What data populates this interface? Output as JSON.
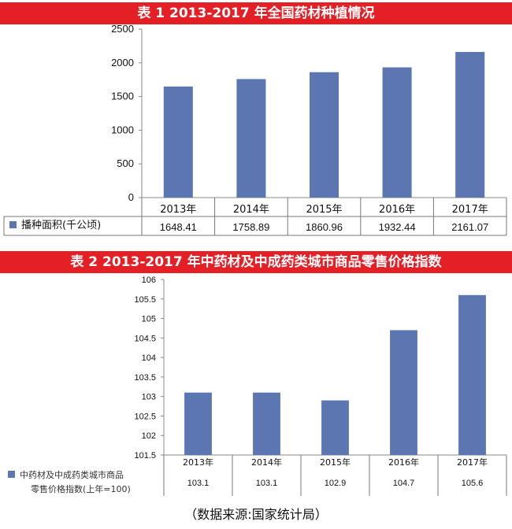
{
  "chart_data": [
    {
      "type": "bar",
      "title": "表 1   2013-2017 年全国药材种植情况",
      "categories": [
        "2013年",
        "2014年",
        "2015年",
        "2016年",
        "2017年"
      ],
      "series": [
        {
          "name": "播种面积(千公顷)",
          "values": [
            1648.41,
            1758.89,
            1860.96,
            1932.44,
            2161.07
          ]
        }
      ],
      "value_labels": [
        "1648.41",
        "1758.89",
        "1860.96",
        "1932.44",
        "2161.07"
      ],
      "y_ticks": [
        "0",
        "500",
        "1000",
        "1500",
        "2000",
        "2500"
      ],
      "ylim": [
        0,
        2500
      ],
      "data_table": true,
      "legend": "data-table",
      "grid": false,
      "color": "#5b76b1"
    },
    {
      "type": "bar",
      "title": "表 2   2013-2017 年中药材及中成药类城市商品零售价格指数",
      "categories": [
        "2013年",
        "2014年",
        "2015年",
        "2016年",
        "2017年"
      ],
      "series": [
        {
          "name": "中药材及中成药类城市商品零售价格指数(上年=100)",
          "values": [
            103.1,
            103.1,
            102.9,
            104.7,
            105.6
          ]
        }
      ],
      "value_labels": [
        "103.1",
        "103.1",
        "102.9",
        "104.7",
        "105.6"
      ],
      "y_ticks": [
        "101.5",
        "102",
        "102.5",
        "103",
        "103.5",
        "104",
        "104.5",
        "105",
        "105.5",
        "106"
      ],
      "ylim": [
        101.5,
        106
      ],
      "data_table": true,
      "legend": "data-table",
      "grid": false,
      "color": "#5b76b1"
    }
  ],
  "source": "（数据来源:国家统计局）"
}
